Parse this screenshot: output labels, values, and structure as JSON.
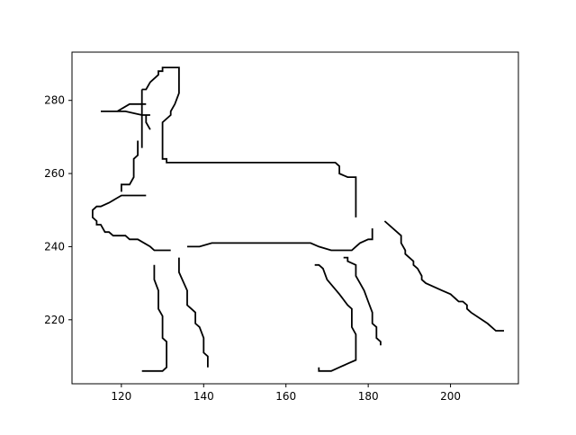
{
  "chart_data": {
    "type": "line",
    "title": "",
    "xlabel": "",
    "ylabel": "",
    "xlim": [
      108,
      216.5
    ],
    "ylim": [
      202.5,
      293.2
    ],
    "xticks": [
      {
        "value": 120,
        "label": "120"
      },
      {
        "value": 140,
        "label": "140"
      },
      {
        "value": 160,
        "label": "160"
      },
      {
        "value": 180,
        "label": "180"
      },
      {
        "value": 200,
        "label": "200"
      }
    ],
    "yticks": [
      {
        "value": 220,
        "label": "220"
      },
      {
        "value": 240,
        "label": "240"
      },
      {
        "value": 260,
        "label": "260"
      },
      {
        "value": 280,
        "label": "280"
      }
    ],
    "grid": false,
    "legend": "none",
    "line_color": "#000000",
    "series": [
      {
        "points": [
          [
            115,
            277
          ],
          [
            121,
            277
          ],
          [
            125,
            276
          ],
          [
            127,
            276
          ]
        ]
      },
      {
        "points": [
          [
            119,
            277
          ],
          [
            122,
            279
          ],
          [
            126,
            279
          ]
        ]
      },
      {
        "points": [
          [
            125,
            283
          ],
          [
            125,
            267
          ]
        ]
      },
      {
        "points": [
          [
            125,
            283
          ],
          [
            126,
            283
          ],
          [
            127,
            285
          ],
          [
            129,
            287
          ],
          [
            129,
            288
          ],
          [
            130,
            288
          ],
          [
            130,
            289
          ],
          [
            134,
            289
          ],
          [
            134,
            282
          ],
          [
            133,
            279
          ],
          [
            132,
            277
          ],
          [
            132,
            276
          ],
          [
            130,
            274
          ],
          [
            130,
            264
          ],
          [
            131,
            264
          ],
          [
            131,
            263
          ],
          [
            172,
            263
          ],
          [
            173,
            262
          ],
          [
            173,
            260
          ],
          [
            175,
            259
          ],
          [
            177,
            259
          ],
          [
            177,
            248
          ]
        ]
      },
      {
        "points": [
          [
            126,
            276
          ],
          [
            126,
            274
          ],
          [
            127,
            272
          ]
        ]
      },
      {
        "points": [
          [
            124,
            269
          ],
          [
            124,
            265
          ],
          [
            123,
            264
          ],
          [
            123,
            259
          ],
          [
            122,
            257
          ],
          [
            120,
            257
          ],
          [
            120,
            255
          ]
        ]
      },
      {
        "points": [
          [
            126,
            254
          ],
          [
            120,
            254
          ],
          [
            117,
            252
          ],
          [
            115,
            251
          ],
          [
            114,
            251
          ],
          [
            113,
            250
          ],
          [
            113,
            248
          ],
          [
            114,
            247
          ],
          [
            114,
            246
          ],
          [
            115,
            246
          ],
          [
            116,
            244
          ],
          [
            117,
            244
          ],
          [
            118,
            243
          ],
          [
            121,
            243
          ],
          [
            122,
            242
          ],
          [
            124,
            242
          ],
          [
            127,
            240
          ],
          [
            128,
            239
          ],
          [
            132,
            239
          ]
        ]
      },
      {
        "points": [
          [
            136,
            240
          ],
          [
            139,
            240
          ],
          [
            142,
            241
          ],
          [
            166,
            241
          ],
          [
            168,
            240
          ],
          [
            171,
            239
          ],
          [
            176,
            239
          ],
          [
            177,
            240
          ],
          [
            178,
            241
          ],
          [
            180,
            242
          ],
          [
            181,
            242
          ],
          [
            181,
            245
          ]
        ]
      },
      {
        "points": [
          [
            134,
            237
          ],
          [
            134,
            233
          ],
          [
            136,
            228
          ],
          [
            136,
            224
          ],
          [
            137,
            223
          ],
          [
            138,
            222
          ],
          [
            138,
            219
          ],
          [
            139,
            218
          ],
          [
            140,
            215
          ],
          [
            140,
            211
          ],
          [
            141,
            210
          ],
          [
            141,
            207
          ]
        ]
      },
      {
        "points": [
          [
            128,
            235
          ],
          [
            128,
            231
          ],
          [
            129,
            228
          ],
          [
            129,
            223
          ],
          [
            130,
            221
          ],
          [
            130,
            215
          ],
          [
            131,
            214
          ],
          [
            131,
            207
          ],
          [
            130,
            206
          ],
          [
            125,
            206
          ]
        ]
      },
      {
        "points": [
          [
            167,
            235
          ],
          [
            168,
            235
          ],
          [
            169,
            234
          ],
          [
            170,
            231
          ],
          [
            173,
            227
          ],
          [
            175,
            224
          ],
          [
            176,
            223
          ],
          [
            176,
            218
          ],
          [
            177,
            216
          ],
          [
            177,
            209
          ],
          [
            175,
            208
          ],
          [
            173,
            207
          ],
          [
            171,
            206
          ],
          [
            168,
            206
          ],
          [
            168,
            207
          ]
        ]
      },
      {
        "points": [
          [
            174,
            237
          ],
          [
            175,
            237
          ],
          [
            175,
            236
          ],
          [
            177,
            235
          ],
          [
            177,
            232
          ],
          [
            178,
            230
          ],
          [
            179,
            228
          ],
          [
            180,
            225
          ],
          [
            181,
            222
          ],
          [
            181,
            219
          ],
          [
            182,
            218
          ],
          [
            182,
            215
          ],
          [
            183,
            214
          ],
          [
            183,
            213
          ]
        ]
      },
      {
        "points": [
          [
            184,
            247
          ],
          [
            188,
            243
          ],
          [
            188,
            241
          ],
          [
            189,
            239
          ],
          [
            189,
            238
          ],
          [
            191,
            236
          ],
          [
            191,
            235
          ],
          [
            192,
            234
          ],
          [
            193,
            232
          ],
          [
            193,
            231
          ],
          [
            194,
            230
          ],
          [
            198,
            228
          ],
          [
            200,
            227
          ],
          [
            202,
            225
          ],
          [
            203,
            225
          ],
          [
            204,
            224
          ],
          [
            204,
            223
          ],
          [
            205,
            222
          ],
          [
            209,
            219
          ],
          [
            211,
            217
          ],
          [
            213,
            217
          ]
        ]
      }
    ]
  }
}
